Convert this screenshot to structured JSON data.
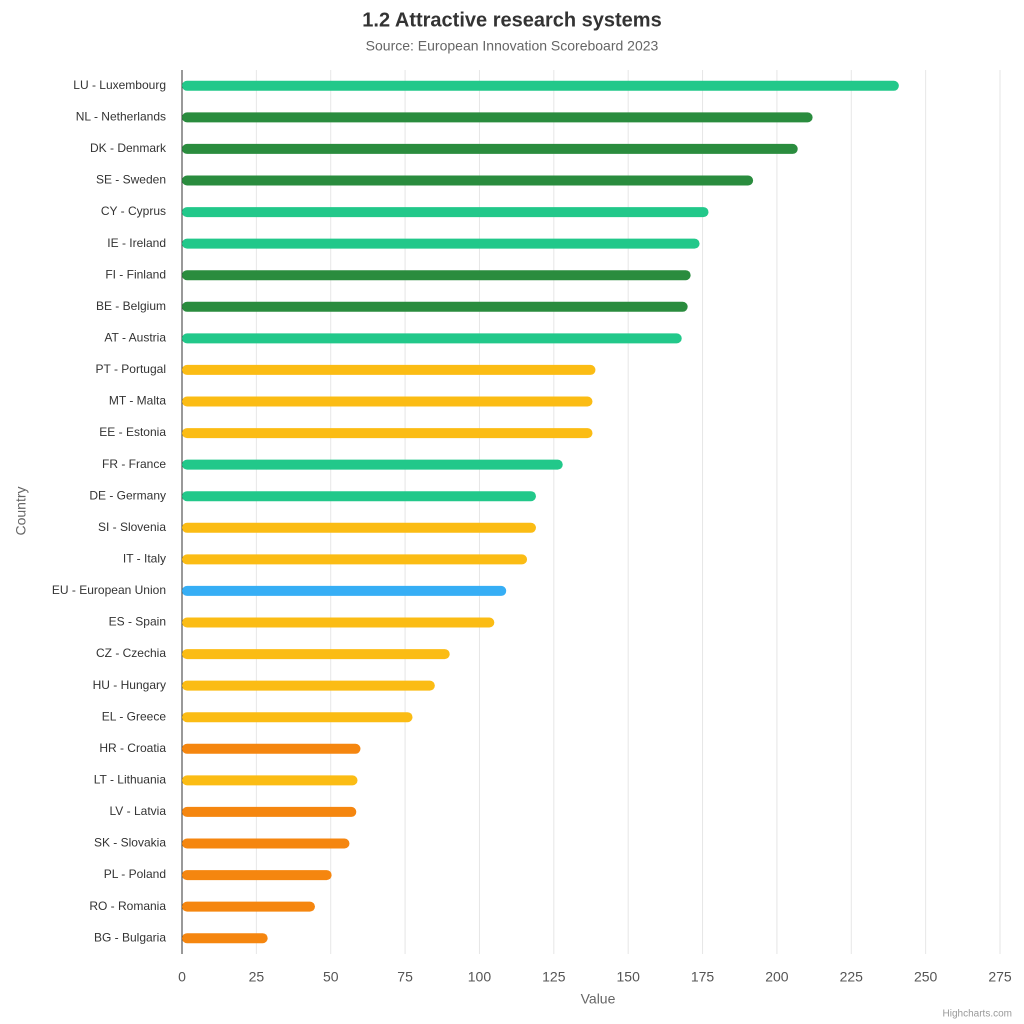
{
  "chart_data": {
    "type": "bar",
    "orientation": "horizontal",
    "title": "1.2 Attractive research systems",
    "subtitle": "Source: European Innovation Scoreboard 2023",
    "x_label": "Value",
    "y_label": "Country",
    "credit": "Highcharts.com",
    "categories": [
      "LU - Luxembourg",
      "NL - Netherlands",
      "DK - Denmark",
      "SE - Sweden",
      "CY - Cyprus",
      "IE - Ireland",
      "FI - Finland",
      "BE - Belgium",
      "AT - Austria",
      "PT - Portugal",
      "MT - Malta",
      "EE - Estonia",
      "FR - France",
      "DE - Germany",
      "SI - Slovenia",
      "IT - Italy",
      "EU - European Union",
      "ES - Spain",
      "CZ - Czechia",
      "HU - Hungary",
      "EL - Greece",
      "HR - Croatia",
      "LT - Lithuania",
      "LV - Latvia",
      "SK - Slovakia",
      "PL - Poland",
      "RO - Romania",
      "BG - Bulgaria"
    ],
    "values": [
      241,
      212,
      207,
      192,
      177,
      174,
      171,
      170,
      168,
      139,
      138,
      138,
      128,
      119,
      119,
      116,
      109,
      105,
      90,
      85,
      77.5,
      60,
      59,
      58.6,
      56.3,
      50.3,
      44.7,
      28.8
    ],
    "colors": [
      "#22c88a",
      "#2a8c3e",
      "#2a8c3e",
      "#2a8c3e",
      "#22c88a",
      "#22c88a",
      "#2a8c3e",
      "#2a8c3e",
      "#22c88a",
      "#fbbc14",
      "#fbbc14",
      "#fbbc14",
      "#22c88a",
      "#22c88a",
      "#fbbc14",
      "#fbbc14",
      "#36aef5",
      "#fbbc14",
      "#fbbc14",
      "#fbbc14",
      "#fbbc14",
      "#f5860f",
      "#fbbc14",
      "#f5860f",
      "#f5860f",
      "#f5860f",
      "#f5860f",
      "#f5860f"
    ],
    "xlim": [
      0,
      275
    ],
    "xticks": [
      0,
      25,
      50,
      75,
      100,
      125,
      150,
      175,
      200,
      225,
      250,
      275
    ],
    "grid": true
  }
}
